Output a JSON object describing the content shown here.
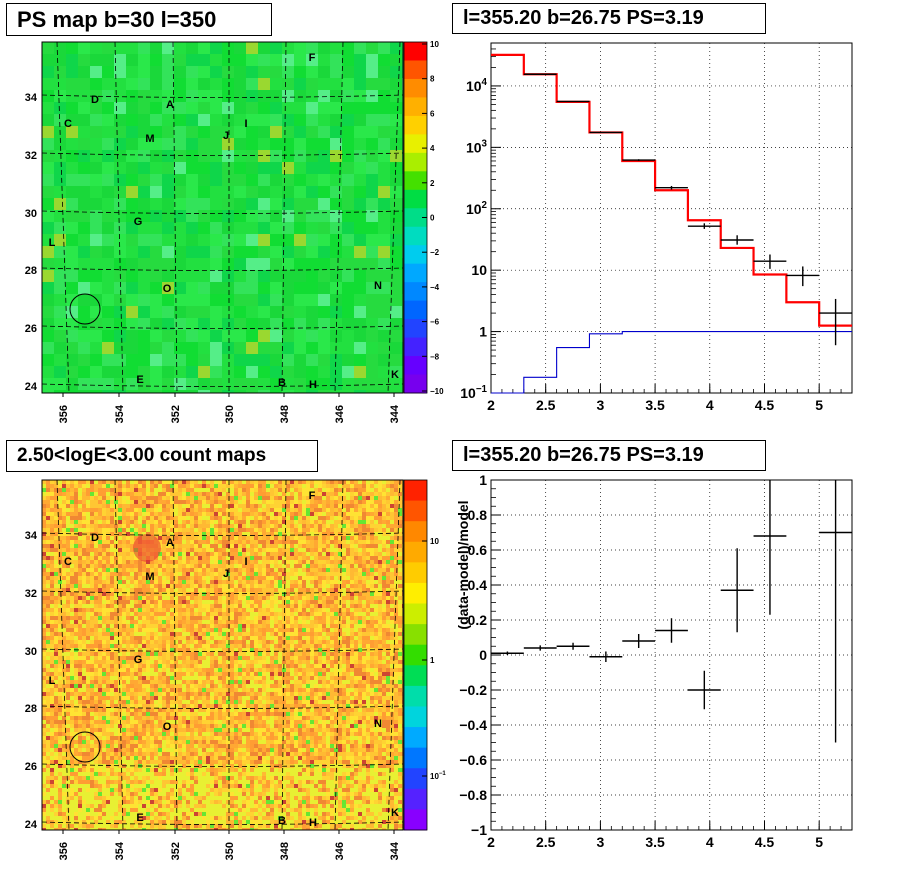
{
  "panels": {
    "ps_map_title": "PS map b=30 l=350",
    "spectrum_title": "l=355.20 b=26.75 PS=3.19",
    "count_map_title": "2.50<logE<3.00 count maps",
    "residual_title": "l=355.20 b=26.75 PS=3.19"
  },
  "colors": {
    "data": "#000000",
    "model": "#ff0000",
    "component": "#0000cc"
  },
  "chart_data": [
    {
      "type": "heatmap",
      "title": "PS map b=30 l=350",
      "x_ticks": [
        "356",
        "354",
        "352",
        "350",
        "348",
        "346",
        "344"
      ],
      "y_ticks": [
        "24",
        "26",
        "28",
        "30",
        "32",
        "34"
      ],
      "colorbar_ticks": [
        "10",
        "8",
        "6",
        "4",
        "2",
        "0",
        "−2",
        "−4",
        "−6",
        "−8",
        "−10"
      ],
      "colorbar_range": [
        -10,
        10
      ],
      "sources": [
        "A",
        "C",
        "D",
        "E",
        "F",
        "G",
        "H",
        "I",
        "J",
        "K",
        "L",
        "M",
        "N",
        "O",
        "B"
      ],
      "circle_position": {
        "l": 355.2,
        "b": 26.75
      }
    },
    {
      "type": "line",
      "title": "l=355.20 b=26.75 PS=3.19",
      "yscale": "log",
      "xlim": [
        2,
        5.3
      ],
      "ylim": [
        0.1,
        50000
      ],
      "x_ticks": [
        "2",
        "2.5",
        "3",
        "3.5",
        "4",
        "4.5",
        "5"
      ],
      "y_ticks": [
        "10^-1",
        "1",
        "10",
        "10^2",
        "10^3",
        "10^4"
      ],
      "bin_edges": [
        2.0,
        2.3,
        2.6,
        2.9,
        3.2,
        3.5,
        3.8,
        4.1,
        4.4,
        4.7,
        5.0,
        5.3
      ],
      "series": [
        {
          "values": [
            32000,
            15500,
            5500,
            1750,
            600,
            200,
            65,
            23,
            8.5,
            3.0,
            1.25
          ]
        },
        {
          "values": [
            0.06,
            0.18,
            0.55,
            0.92,
            1.0,
            1.0,
            1.0,
            1.0,
            1.0,
            1.0,
            1.0
          ]
        }
      ],
      "data_points": [
        {
          "x": 2.45,
          "y": 15500,
          "xerr": 0.15,
          "ylo": 15500,
          "yhi": 15500
        },
        {
          "x": 2.75,
          "y": 5600,
          "xerr": 0.15,
          "ylo": 5600,
          "yhi": 5600
        },
        {
          "x": 3.05,
          "y": 1750,
          "xerr": 0.15,
          "ylo": 1750,
          "yhi": 1750
        },
        {
          "x": 3.35,
          "y": 620,
          "xerr": 0.15,
          "ylo": 600,
          "yhi": 640
        },
        {
          "x": 3.65,
          "y": 220,
          "xerr": 0.15,
          "ylo": 205,
          "yhi": 235
        },
        {
          "x": 3.95,
          "y": 52,
          "xerr": 0.15,
          "ylo": 47,
          "yhi": 58
        },
        {
          "x": 4.25,
          "y": 31,
          "xerr": 0.15,
          "ylo": 26,
          "yhi": 37
        },
        {
          "x": 4.55,
          "y": 14,
          "xerr": 0.15,
          "ylo": 10.5,
          "yhi": 18
        },
        {
          "x": 4.85,
          "y": 8.2,
          "xerr": 0.15,
          "ylo": 5.5,
          "yhi": 11.5
        },
        {
          "x": 5.15,
          "y": 2.0,
          "xerr": 0.15,
          "ylo": 0.6,
          "yhi": 3.4
        }
      ]
    },
    {
      "type": "heatmap",
      "title": "2.50<logE<3.00 count maps",
      "x_ticks": [
        "356",
        "354",
        "352",
        "350",
        "348",
        "346",
        "344"
      ],
      "y_ticks": [
        "24",
        "26",
        "28",
        "30",
        "32",
        "34"
      ],
      "colorbar_ticks": [
        "10",
        "1",
        "10^-1"
      ],
      "colorbar_scale": "log",
      "sources": [
        "A",
        "C",
        "D",
        "E",
        "F",
        "G",
        "H",
        "I",
        "J",
        "K",
        "L",
        "M",
        "N",
        "O",
        "B"
      ]
    },
    {
      "type": "scatter",
      "title": "l=355.20 b=26.75 PS=3.19",
      "ylabel": "(data-model)/model",
      "xlim": [
        2,
        5.3
      ],
      "ylim": [
        -1,
        1
      ],
      "x_ticks": [
        "2",
        "2.5",
        "3",
        "3.5",
        "4",
        "4.5",
        "5"
      ],
      "y_ticks": [
        "−1",
        "−0.8",
        "−0.6",
        "−0.4",
        "−0.2",
        "0",
        "0.2",
        "0.4",
        "0.6",
        "0.8",
        "1"
      ],
      "points": [
        {
          "x": 2.15,
          "y": 0.01,
          "xerr": 0.15,
          "yerr": 0.01
        },
        {
          "x": 2.45,
          "y": 0.04,
          "xerr": 0.15,
          "yerr": 0.015
        },
        {
          "x": 2.75,
          "y": 0.05,
          "xerr": 0.15,
          "yerr": 0.02
        },
        {
          "x": 3.05,
          "y": -0.01,
          "xerr": 0.15,
          "yerr": 0.03
        },
        {
          "x": 3.35,
          "y": 0.08,
          "xerr": 0.15,
          "yerr": 0.04
        },
        {
          "x": 3.65,
          "y": 0.14,
          "xerr": 0.15,
          "yerr": 0.07
        },
        {
          "x": 3.95,
          "y": -0.2,
          "xerr": 0.15,
          "yerr": 0.11
        },
        {
          "x": 4.25,
          "y": 0.37,
          "xerr": 0.15,
          "yerr": 0.24
        },
        {
          "x": 4.55,
          "y": 0.68,
          "xerr": 0.15,
          "yerr": 0.45
        },
        {
          "x": 5.15,
          "y": 0.7,
          "xerr": 0.15,
          "yerr": 1.2
        }
      ]
    }
  ]
}
